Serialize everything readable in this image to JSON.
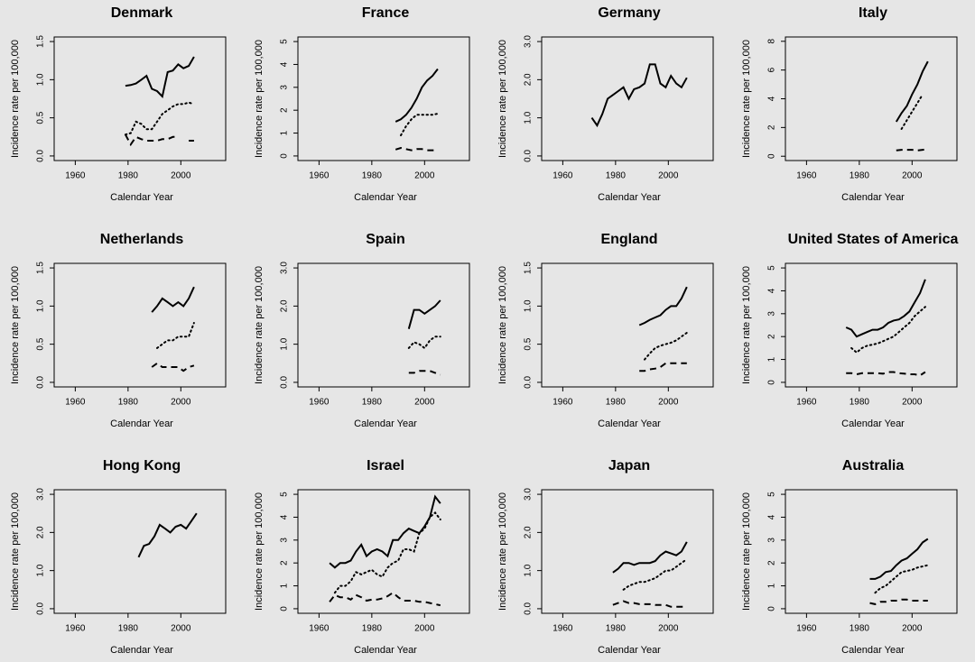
{
  "chart_data": [
    {
      "type": "line",
      "title": "Denmark",
      "xlabel": "Calendar Year",
      "ylabel": "Incidence rate per 100,000",
      "x": [
        1979,
        1981,
        1983,
        1985,
        1987,
        1989,
        1991,
        1993,
        1995,
        1997,
        1999,
        2001,
        2003,
        2005
      ],
      "series": [
        {
          "style": "solid",
          "color": "#000000",
          "values": [
            0.92,
            0.93,
            0.95,
            1.0,
            1.05,
            0.88,
            0.85,
            0.78,
            1.1,
            1.12,
            1.2,
            1.15,
            1.18,
            1.3
          ]
        },
        {
          "style": "dotted",
          "color": "#000000",
          "values": [
            0.28,
            0.3,
            0.45,
            0.42,
            0.35,
            0.35,
            0.45,
            0.55,
            0.6,
            0.65,
            0.68,
            0.68,
            0.7,
            0.68
          ]
        },
        {
          "style": "dashed",
          "color": "#000000",
          "values": [
            0.28,
            0.15,
            0.25,
            0.22,
            0.2,
            0.2,
            0.2,
            0.22,
            0.22,
            0.25,
            0.25,
            null,
            0.2,
            0.2
          ]
        }
      ],
      "xlim": [
        1952,
        2017
      ],
      "xticks": [
        1960,
        1980,
        2000
      ],
      "ylim": [
        -0.06,
        1.56
      ],
      "yticks": [
        {
          "value": 0,
          "label": "0.0"
        },
        {
          "value": 0.5,
          "label": "0.5"
        },
        {
          "value": 1,
          "label": "1.0"
        },
        {
          "value": 1.5,
          "label": "1.5"
        }
      ]
    },
    {
      "type": "line",
      "title": "France",
      "xlabel": "Calendar Year",
      "ylabel": "Incidence rate per 100,000",
      "x": [
        1989,
        1991,
        1993,
        1995,
        1997,
        1999,
        2001,
        2003,
        2005
      ],
      "series": [
        {
          "style": "solid",
          "color": "#000000",
          "values": [
            1.5,
            1.6,
            1.8,
            2.1,
            2.5,
            3.0,
            3.3,
            3.5,
            3.8
          ]
        },
        {
          "style": "dotted",
          "color": "#000000",
          "values": [
            null,
            0.9,
            1.3,
            1.6,
            1.8,
            1.8,
            1.8,
            1.8,
            1.85
          ]
        },
        {
          "style": "dashed",
          "color": "#000000",
          "values": [
            0.28,
            0.35,
            0.3,
            0.25,
            0.3,
            0.3,
            0.25,
            0.25,
            0.25
          ]
        }
      ],
      "xlim": [
        1952,
        2017
      ],
      "xticks": [
        1960,
        1980,
        2000
      ],
      "ylim": [
        -0.2,
        5.2
      ],
      "yticks": [
        0,
        1,
        2,
        3,
        4,
        5
      ]
    },
    {
      "type": "line",
      "title": "Germany",
      "xlabel": "Calendar Year",
      "ylabel": "Incidence rate per 100,000",
      "x": [
        1971,
        1973,
        1975,
        1977,
        1979,
        1981,
        1983,
        1985,
        1987,
        1989,
        1991,
        1993,
        1995,
        1997,
        1999,
        2001,
        2003,
        2005,
        2007
      ],
      "series": [
        {
          "style": "solid",
          "color": "#000000",
          "values": [
            1.0,
            0.8,
            1.1,
            1.5,
            1.6,
            1.7,
            1.8,
            1.5,
            1.75,
            1.8,
            1.9,
            2.4,
            2.4,
            1.9,
            1.8,
            2.1,
            1.9,
            1.8,
            2.05
          ]
        }
      ],
      "xlim": [
        1952,
        2017
      ],
      "xticks": [
        1960,
        1980,
        2000
      ],
      "ylim": [
        -0.12,
        3.12
      ],
      "yticks": [
        {
          "value": 0,
          "label": "0.0"
        },
        {
          "value": 1,
          "label": "1.0"
        },
        {
          "value": 2,
          "label": "2.0"
        },
        {
          "value": 3,
          "label": "3.0"
        }
      ]
    },
    {
      "type": "line",
      "title": "Italy",
      "xlabel": "Calendar Year",
      "ylabel": "Incidence rate per 100,000",
      "x": [
        1994,
        1996,
        1998,
        2000,
        2002,
        2004,
        2006
      ],
      "series": [
        {
          "style": "solid",
          "color": "#000000",
          "values": [
            2.4,
            3.0,
            3.5,
            4.3,
            5.0,
            5.9,
            6.6
          ]
        },
        {
          "style": "dotted",
          "color": "#000000",
          "values": [
            null,
            1.9,
            2.5,
            3.1,
            3.7,
            4.3,
            null
          ]
        },
        {
          "style": "dashed",
          "color": "#000000",
          "values": [
            0.4,
            0.45,
            0.45,
            0.45,
            0.4,
            0.45,
            0.5
          ]
        }
      ],
      "xlim": [
        1952,
        2017
      ],
      "xticks": [
        1960,
        1980,
        2000
      ],
      "ylim": [
        -0.3,
        8.3
      ],
      "yticks": [
        0,
        2,
        4,
        6,
        8
      ]
    },
    {
      "type": "line",
      "title": "Netherlands",
      "xlabel": "Calendar Year",
      "ylabel": "Incidence rate per 100,000",
      "x": [
        1989,
        1991,
        1993,
        1995,
        1997,
        1999,
        2001,
        2003,
        2005
      ],
      "series": [
        {
          "style": "solid",
          "color": "#000000",
          "values": [
            0.92,
            1.0,
            1.1,
            1.05,
            1.0,
            1.05,
            1.0,
            1.1,
            1.25
          ]
        },
        {
          "style": "dotted",
          "color": "#000000",
          "values": [
            null,
            0.45,
            0.5,
            0.55,
            0.55,
            0.6,
            0.6,
            0.6,
            0.78
          ]
        },
        {
          "style": "dashed",
          "color": "#000000",
          "values": [
            0.2,
            0.25,
            0.2,
            0.2,
            0.2,
            0.2,
            0.15,
            0.2,
            0.22
          ]
        }
      ],
      "xlim": [
        1952,
        2017
      ],
      "xticks": [
        1960,
        1980,
        2000
      ],
      "ylim": [
        -0.06,
        1.56
      ],
      "yticks": [
        {
          "value": 0,
          "label": "0.0"
        },
        {
          "value": 0.5,
          "label": "0.5"
        },
        {
          "value": 1,
          "label": "1.0"
        },
        {
          "value": 1.5,
          "label": "1.5"
        }
      ]
    },
    {
      "type": "line",
      "title": "Spain",
      "xlabel": "Calendar Year",
      "ylabel": "Incidence rate per 100,000",
      "x": [
        1994,
        1996,
        1998,
        2000,
        2002,
        2004,
        2006
      ],
      "series": [
        {
          "style": "solid",
          "color": "#000000",
          "values": [
            1.4,
            1.9,
            1.9,
            1.8,
            1.9,
            2.0,
            2.15
          ]
        },
        {
          "style": "dotted",
          "color": "#000000",
          "values": [
            0.9,
            1.05,
            1.0,
            0.9,
            1.1,
            1.2,
            1.2
          ]
        },
        {
          "style": "dashed",
          "color": "#000000",
          "values": [
            0.25,
            0.25,
            0.3,
            0.3,
            0.3,
            0.25,
            0.2
          ]
        }
      ],
      "xlim": [
        1952,
        2017
      ],
      "xticks": [
        1960,
        1980,
        2000
      ],
      "ylim": [
        -0.12,
        3.12
      ],
      "yticks": [
        {
          "value": 0,
          "label": "0.0"
        },
        {
          "value": 1,
          "label": "1.0"
        },
        {
          "value": 2,
          "label": "2.0"
        },
        {
          "value": 3,
          "label": "3.0"
        }
      ]
    },
    {
      "type": "line",
      "title": "England",
      "xlabel": "Calendar Year",
      "ylabel": "Incidence rate per 100,000",
      "x": [
        1989,
        1991,
        1993,
        1995,
        1997,
        1999,
        2001,
        2003,
        2005,
        2007
      ],
      "series": [
        {
          "style": "solid",
          "color": "#000000",
          "values": [
            0.75,
            0.78,
            0.82,
            0.85,
            0.88,
            0.95,
            1.0,
            1.0,
            1.1,
            1.25
          ]
        },
        {
          "style": "dotted",
          "color": "#000000",
          "values": [
            null,
            0.3,
            0.38,
            0.45,
            0.48,
            0.5,
            0.52,
            0.55,
            0.6,
            0.65
          ]
        },
        {
          "style": "dashed",
          "color": "#000000",
          "values": [
            0.15,
            0.15,
            0.17,
            0.18,
            0.2,
            0.25,
            0.25,
            0.25,
            0.25,
            0.25
          ]
        }
      ],
      "xlim": [
        1952,
        2017
      ],
      "xticks": [
        1960,
        1980,
        2000
      ],
      "ylim": [
        -0.06,
        1.56
      ],
      "yticks": [
        {
          "value": 0,
          "label": "0.0"
        },
        {
          "value": 0.5,
          "label": "0.5"
        },
        {
          "value": 1,
          "label": "1.0"
        },
        {
          "value": 1.5,
          "label": "1.5"
        }
      ]
    },
    {
      "type": "line",
      "title": "United States of America",
      "xlabel": "Calendar Year",
      "ylabel": "Incidence rate per 100,000",
      "x": [
        1975,
        1977,
        1979,
        1981,
        1983,
        1985,
        1987,
        1989,
        1991,
        1993,
        1995,
        1997,
        1999,
        2001,
        2003,
        2005
      ],
      "series": [
        {
          "style": "solid",
          "color": "#000000",
          "values": [
            2.4,
            2.3,
            2.0,
            2.1,
            2.2,
            2.3,
            2.3,
            2.4,
            2.6,
            2.7,
            2.75,
            2.9,
            3.1,
            3.5,
            3.9,
            4.5
          ]
        },
        {
          "style": "dotted",
          "color": "#000000",
          "values": [
            null,
            1.5,
            1.3,
            1.5,
            1.6,
            1.65,
            1.7,
            1.8,
            1.9,
            2.0,
            2.2,
            2.4,
            2.6,
            2.9,
            3.1,
            3.3
          ]
        },
        {
          "style": "dashed",
          "color": "#000000",
          "values": [
            0.4,
            0.4,
            0.35,
            0.4,
            0.4,
            0.4,
            0.4,
            0.38,
            0.45,
            0.45,
            0.4,
            0.38,
            0.35,
            0.35,
            0.3,
            0.45
          ]
        }
      ],
      "xlim": [
        1952,
        2017
      ],
      "xticks": [
        1960,
        1980,
        2000
      ],
      "ylim": [
        -0.2,
        5.2
      ],
      "yticks": [
        0,
        1,
        2,
        3,
        4,
        5
      ]
    },
    {
      "type": "line",
      "title": "Hong Kong",
      "xlabel": "Calendar Year",
      "ylabel": "Incidence rate per 100,000",
      "x": [
        1984,
        1986,
        1988,
        1990,
        1992,
        1994,
        1996,
        1998,
        2000,
        2002,
        2004,
        2006
      ],
      "series": [
        {
          "style": "solid",
          "color": "#000000",
          "values": [
            1.35,
            1.65,
            1.7,
            1.9,
            2.2,
            2.1,
            2.0,
            2.15,
            2.2,
            2.1,
            2.3,
            2.5
          ]
        }
      ],
      "xlim": [
        1952,
        2017
      ],
      "xticks": [
        1960,
        1980,
        2000
      ],
      "ylim": [
        -0.12,
        3.12
      ],
      "yticks": [
        {
          "value": 0,
          "label": "0.0"
        },
        {
          "value": 1,
          "label": "1.0"
        },
        {
          "value": 2,
          "label": "2.0"
        },
        {
          "value": 3,
          "label": "3.0"
        }
      ]
    },
    {
      "type": "line",
      "title": "Israel",
      "xlabel": "Calendar Year",
      "ylabel": "Incidence rate per 100,000",
      "x": [
        1964,
        1966,
        1968,
        1970,
        1972,
        1974,
        1976,
        1978,
        1980,
        1982,
        1984,
        1986,
        1988,
        1990,
        1992,
        1994,
        1996,
        1998,
        2000,
        2002,
        2004,
        2006
      ],
      "series": [
        {
          "style": "solid",
          "color": "#000000",
          "values": [
            2.0,
            1.8,
            2.0,
            2.0,
            2.1,
            2.5,
            2.8,
            2.3,
            2.5,
            2.6,
            2.5,
            2.3,
            3.0,
            3.0,
            3.3,
            3.5,
            3.4,
            3.3,
            3.6,
            4.0,
            4.9,
            4.6
          ]
        },
        {
          "style": "dotted",
          "color": "#000000",
          "values": [
            null,
            0.7,
            1.0,
            1.0,
            1.2,
            1.6,
            1.5,
            1.6,
            1.7,
            1.5,
            1.4,
            1.8,
            2.0,
            2.1,
            2.6,
            2.6,
            2.5,
            3.3,
            3.5,
            4.0,
            4.2,
            3.9
          ]
        },
        {
          "style": "dashed",
          "color": "#000000",
          "values": [
            0.3,
            0.6,
            0.5,
            0.5,
            0.4,
            0.6,
            0.5,
            0.35,
            0.4,
            0.4,
            0.45,
            0.55,
            0.7,
            0.5,
            0.35,
            0.35,
            0.35,
            0.3,
            0.3,
            0.25,
            0.2,
            0.15
          ]
        }
      ],
      "xlim": [
        1952,
        2017
      ],
      "xticks": [
        1960,
        1980,
        2000
      ],
      "ylim": [
        -0.2,
        5.2
      ],
      "yticks": [
        0,
        1,
        2,
        3,
        4,
        5
      ]
    },
    {
      "type": "line",
      "title": "Japan",
      "xlabel": "Calendar Year",
      "ylabel": "Incidence rate per 100,000",
      "x": [
        1979,
        1981,
        1983,
        1985,
        1987,
        1989,
        1991,
        1993,
        1995,
        1997,
        1999,
        2001,
        2003,
        2005,
        2007
      ],
      "series": [
        {
          "style": "solid",
          "color": "#000000",
          "values": [
            0.95,
            1.05,
            1.2,
            1.2,
            1.15,
            1.2,
            1.2,
            1.2,
            1.25,
            1.4,
            1.5,
            1.45,
            1.4,
            1.5,
            1.75
          ]
        },
        {
          "style": "dotted",
          "color": "#000000",
          "values": [
            null,
            null,
            0.5,
            0.6,
            0.65,
            0.7,
            0.7,
            0.75,
            0.8,
            0.9,
            1.0,
            1.0,
            1.1,
            1.2,
            1.3
          ]
        },
        {
          "style": "dashed",
          "color": "#000000",
          "values": [
            0.1,
            0.15,
            0.2,
            0.15,
            0.15,
            0.12,
            0.12,
            0.12,
            0.1,
            0.1,
            0.1,
            0.05,
            0.05,
            0.05,
            0.05
          ]
        }
      ],
      "xlim": [
        1952,
        2017
      ],
      "xticks": [
        1960,
        1980,
        2000
      ],
      "ylim": [
        -0.12,
        3.12
      ],
      "yticks": [
        {
          "value": 0,
          "label": "0.0"
        },
        {
          "value": 1,
          "label": "1.0"
        },
        {
          "value": 2,
          "label": "2.0"
        },
        {
          "value": 3,
          "label": "3.0"
        }
      ]
    },
    {
      "type": "line",
      "title": "Australia",
      "xlabel": "Calendar Year",
      "ylabel": "Incidence rate per 100,000",
      "x": [
        1984,
        1986,
        1988,
        1990,
        1992,
        1994,
        1996,
        1998,
        2000,
        2002,
        2004,
        2006
      ],
      "series": [
        {
          "style": "solid",
          "color": "#000000",
          "values": [
            1.3,
            1.3,
            1.4,
            1.6,
            1.65,
            1.9,
            2.1,
            2.2,
            2.4,
            2.6,
            2.9,
            3.05
          ]
        },
        {
          "style": "dotted",
          "color": "#000000",
          "values": [
            null,
            0.7,
            0.9,
            1.0,
            1.2,
            1.4,
            1.6,
            1.65,
            1.7,
            1.8,
            1.85,
            1.9
          ]
        },
        {
          "style": "dashed",
          "color": "#000000",
          "values": [
            0.25,
            0.2,
            0.3,
            0.3,
            0.35,
            0.35,
            0.4,
            0.4,
            0.35,
            0.35,
            0.35,
            0.35
          ]
        }
      ],
      "xlim": [
        1952,
        2017
      ],
      "xticks": [
        1960,
        1980,
        2000
      ],
      "ylim": [
        -0.2,
        5.2
      ],
      "yticks": [
        0,
        1,
        2,
        3,
        4,
        5
      ]
    }
  ]
}
